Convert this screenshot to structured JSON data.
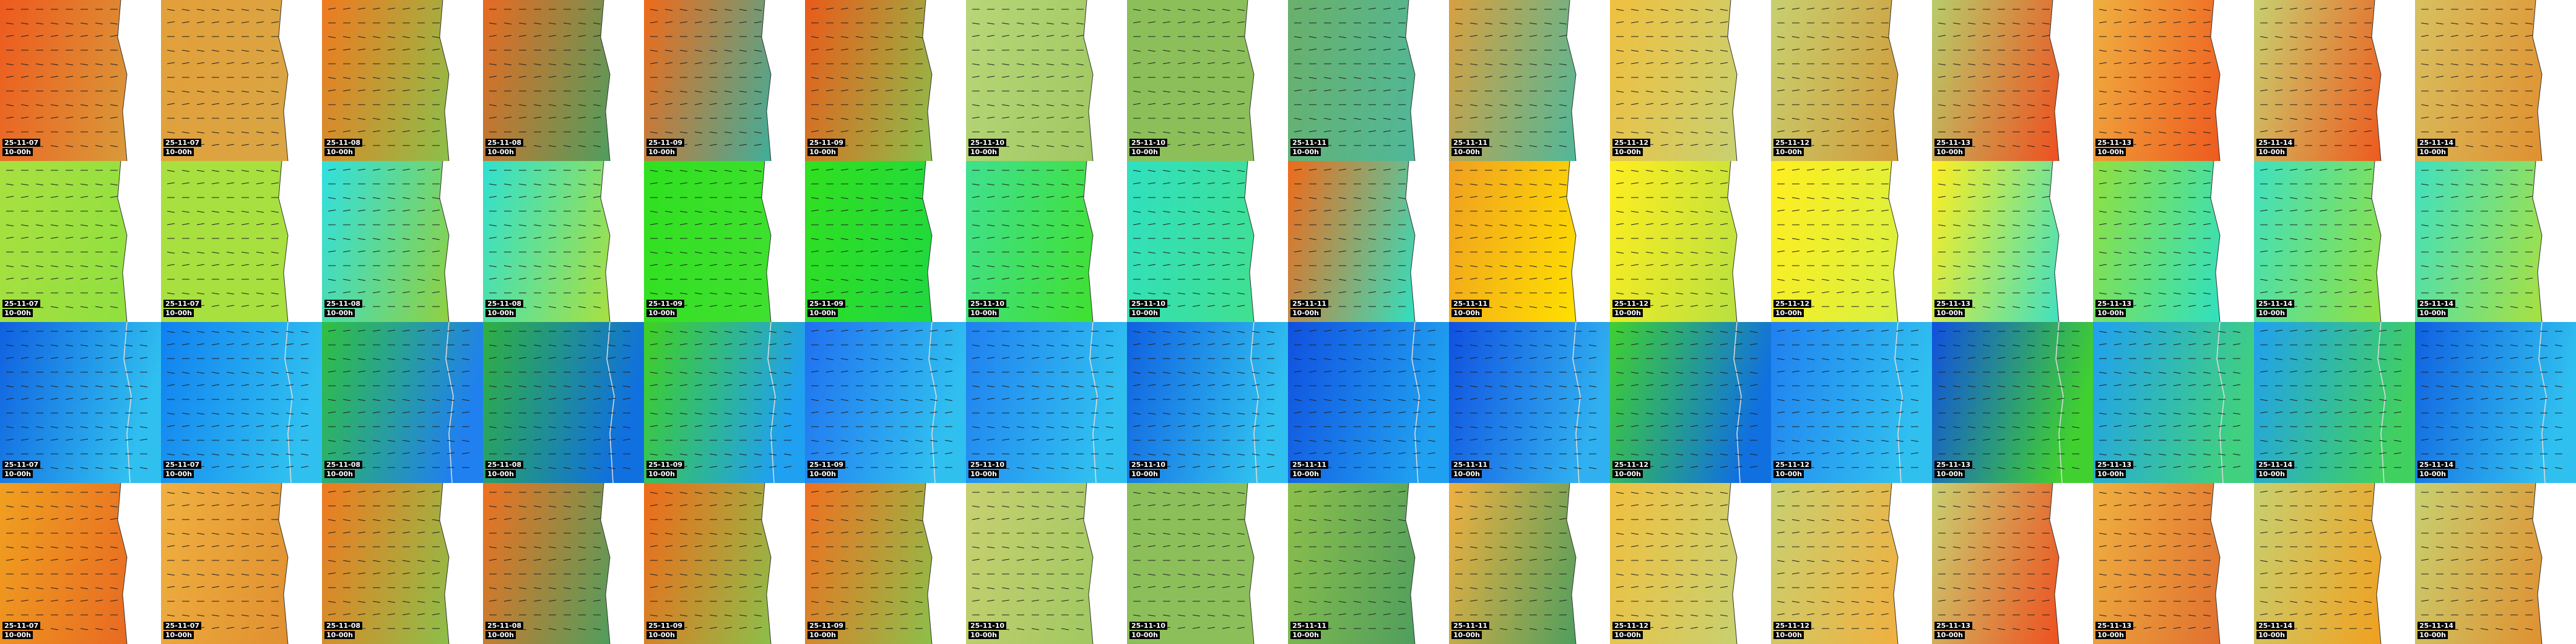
{
  "rows": [
    {
      "tiles": [
        {
          "date": "25-11-07",
          "time": "10-00h"
        },
        {
          "date": "25-11-07",
          "time": "10-00h"
        },
        {
          "date": "25-11-08",
          "time": "10-00h"
        },
        {
          "date": "25-11-08",
          "time": "10-00h"
        },
        {
          "date": "25-11-09",
          "time": "10-00h"
        },
        {
          "date": "25-11-09",
          "time": "10-00h"
        },
        {
          "date": "25-11-10",
          "time": "10-00h"
        },
        {
          "date": "25-11-10",
          "time": "10-00h"
        },
        {
          "date": "25-11-11",
          "time": "10-00h"
        },
        {
          "date": "25-11-11",
          "time": "10-00h"
        },
        {
          "date": "25-11-12",
          "time": "10-00h"
        },
        {
          "date": "25-11-12",
          "time": "10-00h"
        },
        {
          "date": "25-11-13",
          "time": "10-00h"
        },
        {
          "date": "25-11-13",
          "time": "10-00h"
        },
        {
          "date": "25-11-14",
          "time": "10-00h"
        },
        {
          "date": "25-11-14",
          "time": "10-00h"
        }
      ]
    },
    {
      "tiles": [
        {
          "date": "25-11-07",
          "time": "10-00h"
        },
        {
          "date": "25-11-07",
          "time": "10-00h"
        },
        {
          "date": "25-11-08",
          "time": "10-00h"
        },
        {
          "date": "25-11-08",
          "time": "10-00h"
        },
        {
          "date": "25-11-09",
          "time": "10-00h"
        },
        {
          "date": "25-11-09",
          "time": "10-00h"
        },
        {
          "date": "25-11-10",
          "time": "10-00h"
        },
        {
          "date": "25-11-10",
          "time": "10-00h"
        },
        {
          "date": "25-11-11",
          "time": "10-00h"
        },
        {
          "date": "25-11-11",
          "time": "10-00h"
        },
        {
          "date": "25-11-12",
          "time": "10-00h"
        },
        {
          "date": "25-11-12",
          "time": "10-00h"
        },
        {
          "date": "25-11-13",
          "time": "10-00h"
        },
        {
          "date": "25-11-13",
          "time": "10-00h"
        },
        {
          "date": "25-11-14",
          "time": "10-00h"
        },
        {
          "date": "25-11-14",
          "time": "10-00h"
        }
      ]
    },
    {
      "tiles": [
        {
          "date": "25-11-07",
          "time": "10-00h"
        },
        {
          "date": "25-11-07",
          "time": "10-00h"
        },
        {
          "date": "25-11-08",
          "time": "10-00h"
        },
        {
          "date": "25-11-08",
          "time": "10-00h"
        },
        {
          "date": "25-11-09",
          "time": "10-00h"
        },
        {
          "date": "25-11-09",
          "time": "10-00h"
        },
        {
          "date": "25-11-10",
          "time": "10-00h"
        },
        {
          "date": "25-11-10",
          "time": "10-00h"
        },
        {
          "date": "25-11-11",
          "time": "10-00h"
        },
        {
          "date": "25-11-11",
          "time": "10-00h"
        },
        {
          "date": "25-11-12",
          "time": "10-00h"
        },
        {
          "date": "25-11-12",
          "time": "10-00h"
        },
        {
          "date": "25-11-13",
          "time": "10-00h"
        },
        {
          "date": "25-11-13",
          "time": "10-00h"
        },
        {
          "date": "25-11-14",
          "time": "10-00h"
        },
        {
          "date": "25-11-14",
          "time": "10-00h"
        }
      ]
    },
    {
      "tiles": [
        {
          "date": "25-11-07",
          "time": "10-00h"
        },
        {
          "date": "25-11-07",
          "time": "10-00h"
        },
        {
          "date": "25-11-08",
          "time": "10-00h"
        },
        {
          "date": "25-11-08",
          "time": "10-00h"
        },
        {
          "date": "25-11-09",
          "time": "10-00h"
        },
        {
          "date": "25-11-09",
          "time": "10-00h"
        },
        {
          "date": "25-11-10",
          "time": "10-00h"
        },
        {
          "date": "25-11-10",
          "time": "10-00h"
        },
        {
          "date": "25-11-11",
          "time": "10-00h"
        },
        {
          "date": "25-11-11",
          "time": "10-00h"
        },
        {
          "date": "25-11-12",
          "time": "10-00h"
        },
        {
          "date": "25-11-12",
          "time": "10-00h"
        },
        {
          "date": "25-11-13",
          "time": "10-00h"
        },
        {
          "date": "25-11-13",
          "time": "10-00h"
        },
        {
          "date": "25-11-14",
          "time": "10-00h"
        },
        {
          "date": "25-11-14",
          "time": "10-00h"
        }
      ]
    }
  ]
}
